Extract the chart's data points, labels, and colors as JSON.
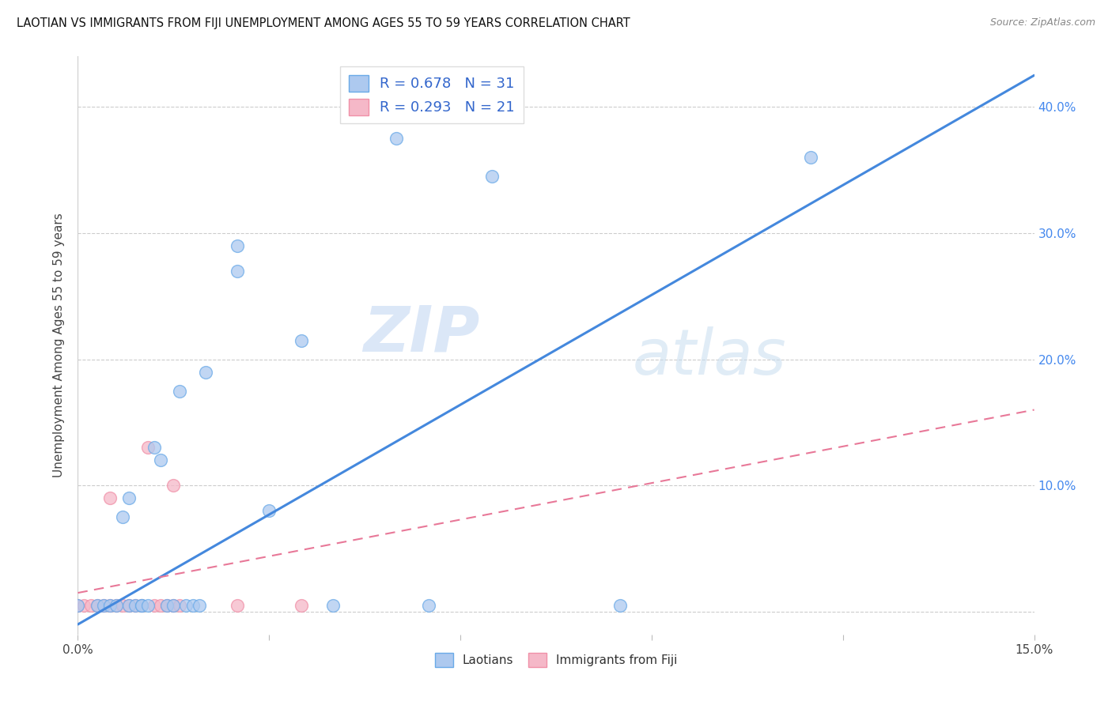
{
  "title": "LAOTIAN VS IMMIGRANTS FROM FIJI UNEMPLOYMENT AMONG AGES 55 TO 59 YEARS CORRELATION CHART",
  "source": "Source: ZipAtlas.com",
  "ylabel_label": "Unemployment Among Ages 55 to 59 years",
  "xlim": [
    0.0,
    0.15
  ],
  "ylim": [
    -0.018,
    0.44
  ],
  "xticks": [
    0.0,
    0.03,
    0.06,
    0.09,
    0.12,
    0.15
  ],
  "xtick_labels": [
    "0.0%",
    "",
    "",
    "",
    "",
    "15.0%"
  ],
  "yticks": [
    0.0,
    0.1,
    0.2,
    0.3,
    0.4
  ],
  "ytick_labels_left": [
    "",
    "",
    "",
    "",
    ""
  ],
  "ytick_labels_right": [
    "",
    "10.0%",
    "20.0%",
    "30.0%",
    "40.0%"
  ],
  "laotian_fill_color": "#adc9ef",
  "fiji_fill_color": "#f5b8c8",
  "laotian_edge_color": "#6aaae8",
  "fiji_edge_color": "#f090a8",
  "laotian_line_color": "#4488dd",
  "fiji_line_color": "#e87898",
  "R_laotian": 0.678,
  "N_laotian": 31,
  "R_fiji": 0.293,
  "N_fiji": 21,
  "watermark_zip": "ZIP",
  "watermark_atlas": "atlas",
  "laotian_scatter_x": [
    0.0,
    0.003,
    0.004,
    0.005,
    0.006,
    0.007,
    0.008,
    0.008,
    0.009,
    0.01,
    0.01,
    0.011,
    0.012,
    0.013,
    0.014,
    0.015,
    0.016,
    0.017,
    0.018,
    0.019,
    0.02,
    0.025,
    0.025,
    0.03,
    0.035,
    0.04,
    0.05,
    0.055,
    0.065,
    0.085,
    0.115
  ],
  "laotian_scatter_y": [
    0.005,
    0.005,
    0.005,
    0.005,
    0.005,
    0.075,
    0.005,
    0.09,
    0.005,
    0.005,
    0.005,
    0.005,
    0.13,
    0.12,
    0.005,
    0.005,
    0.175,
    0.005,
    0.005,
    0.005,
    0.19,
    0.29,
    0.27,
    0.08,
    0.215,
    0.005,
    0.375,
    0.005,
    0.345,
    0.005,
    0.36
  ],
  "fiji_scatter_x": [
    0.0,
    0.001,
    0.002,
    0.003,
    0.004,
    0.005,
    0.005,
    0.006,
    0.007,
    0.008,
    0.009,
    0.01,
    0.011,
    0.012,
    0.013,
    0.014,
    0.015,
    0.015,
    0.016,
    0.025,
    0.035
  ],
  "fiji_scatter_y": [
    0.005,
    0.005,
    0.005,
    0.005,
    0.005,
    0.09,
    0.005,
    0.005,
    0.005,
    0.005,
    0.005,
    0.005,
    0.13,
    0.005,
    0.005,
    0.005,
    0.005,
    0.1,
    0.005,
    0.005,
    0.005
  ],
  "laotian_line_x": [
    0.0,
    0.15
  ],
  "laotian_line_y": [
    -0.01,
    0.425
  ],
  "fiji_line_x": [
    0.0,
    0.15
  ],
  "fiji_line_y": [
    0.015,
    0.16
  ]
}
